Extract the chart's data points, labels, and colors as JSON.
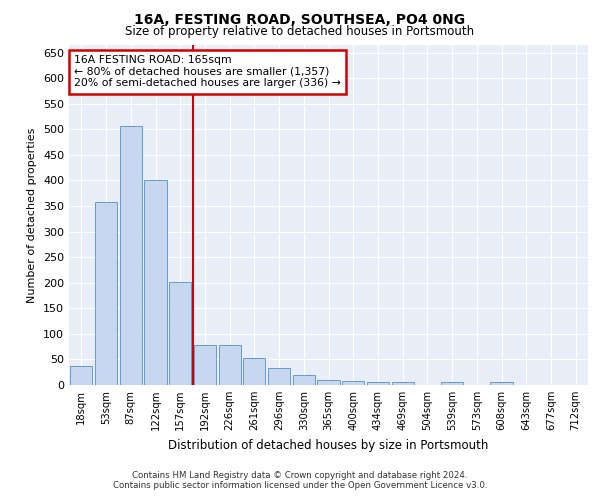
{
  "title1": "16A, FESTING ROAD, SOUTHSEA, PO4 0NG",
  "title2": "Size of property relative to detached houses in Portsmouth",
  "xlabel": "Distribution of detached houses by size in Portsmouth",
  "ylabel": "Number of detached properties",
  "bar_labels": [
    "18sqm",
    "53sqm",
    "87sqm",
    "122sqm",
    "157sqm",
    "192sqm",
    "226sqm",
    "261sqm",
    "296sqm",
    "330sqm",
    "365sqm",
    "400sqm",
    "434sqm",
    "469sqm",
    "504sqm",
    "539sqm",
    "573sqm",
    "608sqm",
    "643sqm",
    "677sqm",
    "712sqm"
  ],
  "bar_values": [
    37,
    357,
    507,
    400,
    202,
    78,
    78,
    53,
    33,
    20,
    10,
    7,
    5,
    5,
    0,
    5,
    0,
    5,
    0,
    0,
    0
  ],
  "bar_color": "#c5d8f0",
  "bar_edge_color": "#5a8fc2",
  "ylim": [
    0,
    665
  ],
  "yticks": [
    0,
    50,
    100,
    150,
    200,
    250,
    300,
    350,
    400,
    450,
    500,
    550,
    600,
    650
  ],
  "red_line_x": 4.5,
  "annotation_text": "16A FESTING ROAD: 165sqm\n← 80% of detached houses are smaller (1,357)\n20% of semi-detached houses are larger (336) →",
  "annotation_box_color": "#ffffff",
  "annotation_box_edge_color": "#cc0000",
  "red_line_color": "#cc0000",
  "background_color": "#e8eef8",
  "grid_color": "#ffffff",
  "footer_line1": "Contains HM Land Registry data © Crown copyright and database right 2024.",
  "footer_line2": "Contains public sector information licensed under the Open Government Licence v3.0."
}
